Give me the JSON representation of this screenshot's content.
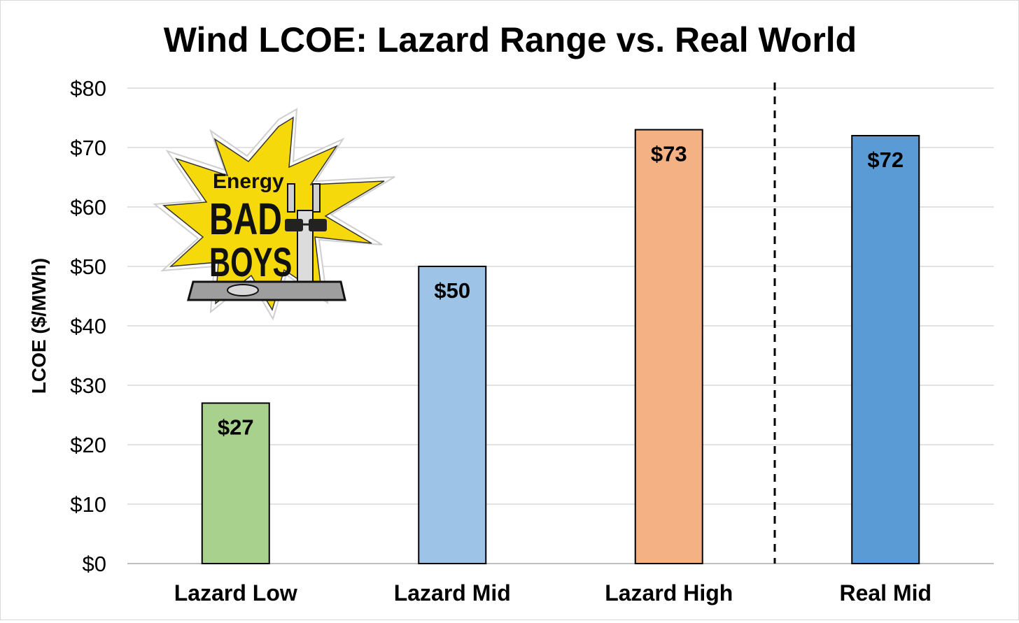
{
  "chart_data": {
    "type": "bar",
    "title": "Wind LCOE: Lazard Range vs. Real World",
    "xlabel": "",
    "ylabel": "LCOE ($/MWh)",
    "categories": [
      "Lazard Low",
      "Lazard Mid",
      "Lazard High",
      "Real Mid"
    ],
    "values": [
      27,
      50,
      73,
      72
    ],
    "data_labels": [
      "$27",
      "$50",
      "$73",
      "$72"
    ],
    "bar_colors": [
      "#a9d18e",
      "#9dc3e6",
      "#f4b183",
      "#5b9bd5"
    ],
    "ylim": [
      0,
      80
    ],
    "yticks": [
      0,
      10,
      20,
      30,
      40,
      50,
      60,
      70,
      80
    ],
    "ytick_labels": [
      "$0",
      "$10",
      "$20",
      "$30",
      "$40",
      "$50",
      "$60",
      "$70",
      "$80"
    ],
    "grid": true,
    "separator": "dashed vertical line between Lazard High and Real Mid",
    "legend": "none"
  },
  "logo": {
    "name": "energy-bad-boys-logo",
    "line1": "Energy",
    "line2": "BAD",
    "line3": "BOYS",
    "colors": {
      "burst": "#f5d90a",
      "ink": "#111111"
    }
  }
}
